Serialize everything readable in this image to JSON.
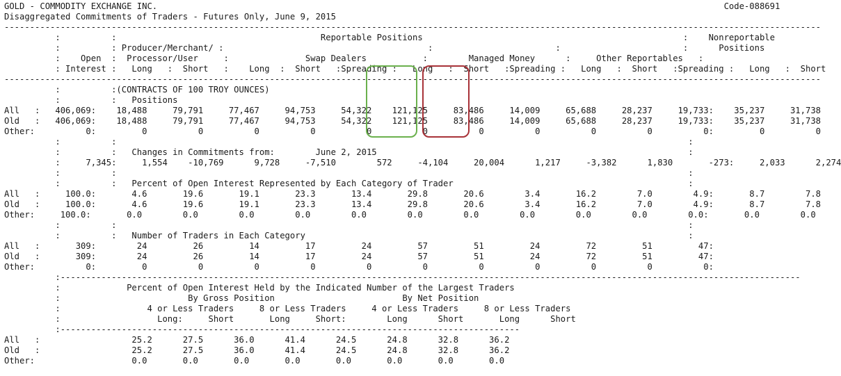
{
  "report": {
    "lines": [
      "GOLD - COMMODITY EXCHANGE INC.                                                                                                               Code-088691",
      "Disaggregated Commitments of Traders - Futures Only, June 9, 2015",
      "----------------------------------------------------------------------------------------------------------------------------------------------------------------",
      "          :          :                                        Reportable Positions                                                   :    Nonreportable",
      "          :          : Producer/Merchant/ :                                        :                        :                        :      Positions",
      "          :    Open  :  Processor/User     :               Swap Dealers           :        Managed Money      :     Other Reportables   :",
      "          : Interest :   Long   :  Short   :    Long  :  Short   :Spreading :   Long   :  Short   :Spreading :   Long   :  Short   :Spreading :   Long   :  Short",
      "----------------------------------------------------------------------------------------------------------------------------------------------------------------",
      "          :          :(CONTRACTS OF 100 TROY OUNCES)",
      "          :          :   Positions",
      "All   :   406,069:    18,488     79,791     77,467     94,753     54,322    121,125     83,486     14,009     65,688     28,237     19,733:    35,237     31,738",
      "Old   :   406,069:    18,488     79,791     77,467     94,753     54,322    121,125     83,486     14,009     65,688     28,237     19,733:    35,237     31,738",
      "Other:          0:         0          0          0          0          0          0          0          0          0          0          0:         0          0",
      "          :          :                                                                                                                :",
      "          :          :   Changes in Commitments from:        June 2, 2015                                                             :",
      "          :     7,345:     1,554    -10,769      9,728     -7,510        572     -4,104     20,004      1,217     -3,382      1,830       -273:     2,033      2,274",
      "          :          :                                                                                                                :",
      "          :          :   Percent of Open Interest Represented by Each Category of Trader                                              :",
      "All   :     100.0:       4.6       19.6       19.1       23.3       13.4       29.8       20.6        3.4       16.2        7.0        4.9:       8.7        7.8",
      "Old   :     100.0:       4.6       19.6       19.1       23.3       13.4       29.8       20.6        3.4       16.2        7.0        4.9:       8.7        7.8",
      "Other:     100.0:       0.0        0.0        0.0        0.0        0.0        0.0        0.0        0.0        0.0        0.0        0.0:       0.0        0.0",
      "          :          :                                                                                                                :",
      "          :          :   Number of Traders in Each Category                                                                           :",
      "All   :       309:        24         26         14         17         24         57         51         24         72         51         47:",
      "Old   :       309:        24         26         14         17         24         57         51         24         72         51         47:",
      "Other:          0:         0          0          0          0          0          0          0          0          0          0          0:",
      "          :-------------------------------------------------------------------------------------------------------------------------------------------------",
      "          :             Percent of Open Interest Held by the Indicated Number of the Largest Traders",
      "          :                         By Gross Position                         By Net Position",
      "          :                 4 or Less Traders     8 or Less Traders     4 or Less Traders     8 or Less Traders",
      "          :                   Long:     Short       Long     Short:        Long      Short       Long      Short",
      "          :------------------------------------------------------------------------------------------",
      "All   :                  25.2      27.5      36.0      41.4      24.5      24.8      32.8      36.2",
      "Old   :                  25.2      27.5      36.0      41.4      24.5      24.8      32.8      36.2",
      "Other:                   0.0       0.0       0.0       0.0       0.0       0.0       0.0       0.0"
    ]
  },
  "highlights": {
    "long_color": "#6ab04c",
    "short_color": "#a83238"
  }
}
